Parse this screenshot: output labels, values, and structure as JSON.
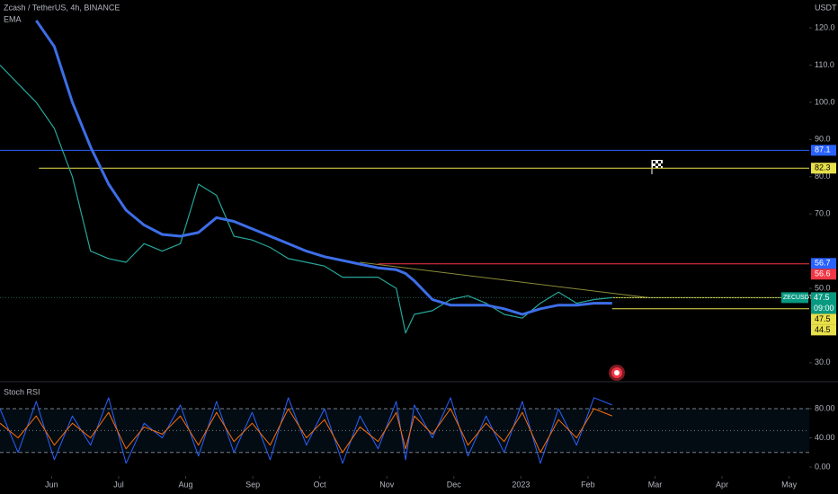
{
  "chart_data": [
    {
      "type": "line",
      "title": "Zcash / TetherUS, 4h, BINANCE",
      "indicator": "EMA",
      "axis_unit": "USDT",
      "x": [
        -0.77,
        -0.5,
        -0.23,
        0.04,
        0.31,
        0.58,
        0.85,
        1.11,
        1.38,
        1.65,
        1.92,
        2.19,
        2.46,
        2.72,
        2.99,
        3.26,
        3.53,
        3.8,
        4.07,
        4.34,
        4.6,
        4.87,
        5.14,
        5.28,
        5.41,
        5.68,
        5.95,
        6.21,
        6.48,
        6.75,
        7.02,
        7.29,
        7.56,
        7.83,
        8.09,
        8.36
      ],
      "series": [
        {
          "name": "ZECUSDT",
          "color": "#26a69a",
          "values": [
            110,
            105,
            100,
            93,
            80,
            60,
            58,
            57,
            62,
            60,
            62,
            78,
            75,
            64,
            63,
            61,
            58,
            57,
            56,
            53,
            53,
            53,
            50,
            38,
            43,
            44,
            47,
            48,
            46,
            43,
            42,
            46,
            49,
            46,
            47,
            47.5
          ]
        },
        {
          "name": "EMA",
          "color": "#3d6ee8",
          "values": [
            null,
            null,
            122,
            115,
            100,
            88,
            78,
            71,
            67,
            64.5,
            64,
            65,
            69,
            68,
            66,
            64,
            62,
            60,
            58.5,
            57.5,
            56.5,
            55.5,
            55,
            54,
            52,
            47,
            45.5,
            45.5,
            45.5,
            44.5,
            43,
            44.5,
            45.5,
            45.5,
            46,
            46
          ]
        }
      ],
      "xlim": [
        -0.77,
        11.3
      ],
      "xticks": [
        {
          "value": 0,
          "label": "Jun"
        },
        {
          "value": 1,
          "label": "Jul"
        },
        {
          "value": 2,
          "label": "Aug"
        },
        {
          "value": 3,
          "label": "Sep"
        },
        {
          "value": 4,
          "label": "Oct"
        },
        {
          "value": 5,
          "label": "Nov"
        },
        {
          "value": 6,
          "label": "Dec"
        },
        {
          "value": 7,
          "label": "2023"
        },
        {
          "value": 8,
          "label": "Feb"
        },
        {
          "value": 9,
          "label": "Mar"
        },
        {
          "value": 10,
          "label": "Apr"
        },
        {
          "value": 11,
          "label": "May"
        }
      ],
      "ylim": [
        24.9,
        127.5
      ],
      "yticks": [
        {
          "value": 30,
          "label": "30.0"
        },
        {
          "value": 50,
          "label": "50.0"
        },
        {
          "value": 70,
          "label": "70.0"
        },
        {
          "value": 80,
          "label": "80.0"
        },
        {
          "value": 90,
          "label": "90.0"
        },
        {
          "value": 100,
          "label": "100.0"
        },
        {
          "value": 110,
          "label": "110.0"
        },
        {
          "value": 120,
          "label": "120.0"
        }
      ],
      "levels": [
        {
          "value": 87.1,
          "color": "#2962ff",
          "start": -0.77
        },
        {
          "value": 82.3,
          "color": "#e8e04a",
          "start": -0.19
        },
        {
          "value": 56.6,
          "color": "#f23645",
          "start": 4.87
        },
        {
          "value": 47.5,
          "color": "#e8e04a",
          "start": 8.36
        },
        {
          "value": 44.5,
          "color": "#e8e04a",
          "start": 8.36
        }
      ],
      "alert": {
        "value": 56.7,
        "color": "#2962ff"
      },
      "trendline": {
        "x": [
          4.6,
          8.9
        ],
        "values": [
          57,
          47.5
        ],
        "color": "#8b8b3a"
      },
      "last_price": 47.5,
      "countdown": "09:00"
    },
    {
      "type": "line",
      "title": "Stoch RSI",
      "x": [
        -0.77,
        -0.5,
        -0.23,
        0.04,
        0.31,
        0.58,
        0.85,
        1.11,
        1.38,
        1.65,
        1.92,
        2.19,
        2.46,
        2.72,
        2.99,
        3.26,
        3.53,
        3.8,
        4.07,
        4.34,
        4.6,
        4.87,
        5.14,
        5.28,
        5.41,
        5.68,
        5.95,
        6.21,
        6.48,
        6.75,
        7.02,
        7.29,
        7.56,
        7.83,
        8.09,
        8.36
      ],
      "series": [
        {
          "color": "#2962ff",
          "values": [
            80,
            20,
            90,
            10,
            70,
            30,
            95,
            5,
            60,
            40,
            85,
            15,
            90,
            20,
            75,
            10,
            95,
            30,
            80,
            5,
            70,
            25,
            90,
            10,
            85,
            40,
            95,
            15,
            70,
            20,
            90,
            5,
            80,
            30,
            95,
            85
          ]
        },
        {
          "color": "#ff6d00",
          "values": [
            60,
            40,
            70,
            30,
            60,
            40,
            75,
            25,
            55,
            45,
            70,
            30,
            75,
            35,
            60,
            30,
            80,
            40,
            65,
            20,
            55,
            35,
            75,
            25,
            70,
            45,
            80,
            30,
            60,
            35,
            75,
            20,
            65,
            40,
            80,
            70
          ]
        }
      ],
      "ylim": [
        -12.3,
        116.9
      ],
      "yticks": [
        {
          "value": 0,
          "label": "0.00"
        },
        {
          "value": 40,
          "label": "40.00"
        },
        {
          "value": 80,
          "label": "80.00"
        }
      ],
      "bands": [
        80,
        50,
        20
      ]
    }
  ]
}
